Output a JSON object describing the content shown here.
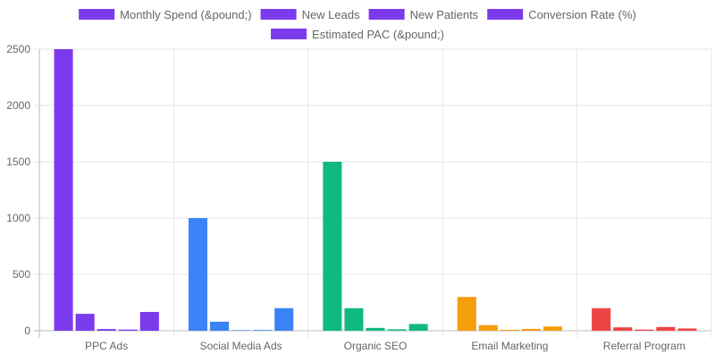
{
  "chart_data": {
    "type": "bar",
    "categories": [
      "PPC Ads",
      "Social Media Ads",
      "Organic SEO",
      "Email Marketing",
      "Referral Program"
    ],
    "category_colors": [
      "#7c3aed",
      "#3b82f6",
      "#10b981",
      "#f59e0b",
      "#ef4444"
    ],
    "legend_color": "#7c3aed",
    "legend_position": "top",
    "grid": true,
    "ylim": [
      0,
      2500
    ],
    "yticks": [
      0,
      500,
      1000,
      1500,
      2000,
      2500
    ],
    "series": [
      {
        "name": "Monthly Spend (&pound;)",
        "values": [
          2500,
          1000,
          1500,
          300,
          200
        ]
      },
      {
        "name": "New Leads",
        "values": [
          150,
          80,
          200,
          50,
          30
        ]
      },
      {
        "name": "New Patients",
        "values": [
          15,
          5,
          25,
          8,
          10
        ]
      },
      {
        "name": "Conversion Rate (%)",
        "values": [
          10,
          6.25,
          12.5,
          16,
          33.3
        ]
      },
      {
        "name": "Estimated PAC (&pound;)",
        "values": [
          166.7,
          200,
          60,
          37.5,
          20
        ]
      }
    ]
  }
}
